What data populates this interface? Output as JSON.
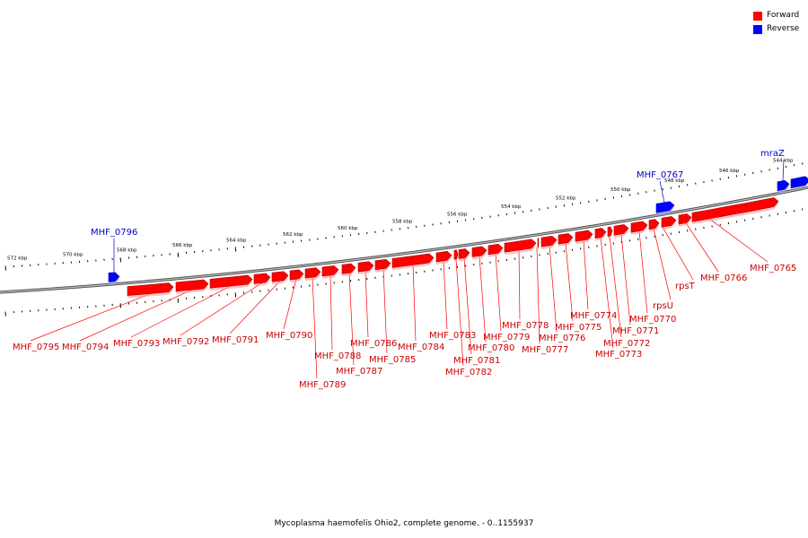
{
  "legend": [
    {
      "label": "Forward",
      "color": "#ff0000"
    },
    {
      "label": "Reverse",
      "color": "#0000ff"
    }
  ],
  "caption": "Mycoplasma haemofelis Ohio2, complete genome. - 0..1155937",
  "colors": {
    "forward": "#ff0000",
    "reverse": "#0000ff",
    "backbone": "#888888",
    "forward_label": "#cc0000",
    "reverse_label": "#0000cc"
  },
  "scale_labels": [
    "572 kbp",
    "570 kbp",
    "568 kbp",
    "566 kbp",
    "564 kbp",
    "562 kbp",
    "560 kbp",
    "558 kbp",
    "556 kbp",
    "554 kbp",
    "552 kbp",
    "550 kbp",
    "548 kbp",
    "546 kbp",
    "544 kbp"
  ],
  "genes": [
    {
      "name": "MHF_0796",
      "strand": "reverse"
    },
    {
      "name": "MHF_0795",
      "strand": "forward"
    },
    {
      "name": "MHF_0794",
      "strand": "forward"
    },
    {
      "name": "MHF_0793",
      "strand": "forward"
    },
    {
      "name": "MHF_0792",
      "strand": "forward"
    },
    {
      "name": "MHF_0791",
      "strand": "forward"
    },
    {
      "name": "MHF_0790",
      "strand": "forward"
    },
    {
      "name": "MHF_0789",
      "strand": "forward"
    },
    {
      "name": "MHF_0788",
      "strand": "forward"
    },
    {
      "name": "MHF_0787",
      "strand": "forward"
    },
    {
      "name": "MHF_0786",
      "strand": "forward"
    },
    {
      "name": "MHF_0785",
      "strand": "forward"
    },
    {
      "name": "MHF_0784",
      "strand": "forward"
    },
    {
      "name": "MHF_0783",
      "strand": "forward"
    },
    {
      "name": "MHF_0782",
      "strand": "forward"
    },
    {
      "name": "MHF_0781",
      "strand": "forward"
    },
    {
      "name": "MHF_0780",
      "strand": "forward"
    },
    {
      "name": "MHF_0779",
      "strand": "forward"
    },
    {
      "name": "MHF_0778",
      "strand": "forward"
    },
    {
      "name": "MHF_0777",
      "strand": "forward"
    },
    {
      "name": "MHF_0776",
      "strand": "forward"
    },
    {
      "name": "MHF_0775",
      "strand": "forward"
    },
    {
      "name": "MHF_0774",
      "strand": "forward"
    },
    {
      "name": "MHF_0773",
      "strand": "forward"
    },
    {
      "name": "MHF_0772",
      "strand": "forward"
    },
    {
      "name": "MHF_0771",
      "strand": "forward"
    },
    {
      "name": "MHF_0770",
      "strand": "forward"
    },
    {
      "name": "rpsU",
      "strand": "forward"
    },
    {
      "name": "rpsT",
      "strand": "forward"
    },
    {
      "name": "MHF_0767",
      "strand": "reverse"
    },
    {
      "name": "MHF_0766",
      "strand": "forward"
    },
    {
      "name": "MHF_0765",
      "strand": "forward"
    },
    {
      "name": "mraZ",
      "strand": "reverse"
    }
  ]
}
